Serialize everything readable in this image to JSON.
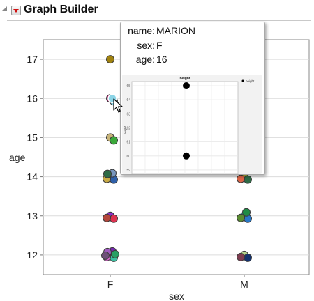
{
  "panel": {
    "title": "Graph Builder"
  },
  "chart_data": {
    "type": "scatter",
    "xlabel": "sex",
    "ylabel": "age",
    "categories": [
      "F",
      "M"
    ],
    "yticks": [
      12,
      13,
      14,
      15,
      16,
      17
    ],
    "ylim": [
      11.5,
      17.5
    ],
    "grid": true,
    "points": [
      {
        "x": "F",
        "y": 17,
        "color": "#a0820f"
      },
      {
        "x": "F",
        "y": 16,
        "color": "#a01060"
      },
      {
        "x": "F",
        "y": 16,
        "color": "#8cd4e6"
      },
      {
        "x": "F",
        "y": 15,
        "color": "#c8b478"
      },
      {
        "x": "F",
        "y": 15,
        "color": "#3aa83a"
      },
      {
        "x": "F",
        "y": 14,
        "color": "#d2691e"
      },
      {
        "x": "F",
        "y": 14,
        "color": "#2e5fa8"
      },
      {
        "x": "F",
        "y": 14,
        "color": "#c8aa46"
      },
      {
        "x": "F",
        "y": 14,
        "color": "#7896be"
      },
      {
        "x": "F",
        "y": 14,
        "color": "#2e6b46"
      },
      {
        "x": "F",
        "y": 13,
        "color": "#8b2fc8"
      },
      {
        "x": "F",
        "y": 13,
        "color": "#dc3250"
      },
      {
        "x": "F",
        "y": 13,
        "color": "#b4463c"
      },
      {
        "x": "F",
        "y": 12,
        "color": "#8cc878"
      },
      {
        "x": "F",
        "y": 12,
        "color": "#3cbea0"
      },
      {
        "x": "F",
        "y": 12,
        "color": "#d264c8"
      },
      {
        "x": "F",
        "y": 12,
        "color": "#7828b4"
      },
      {
        "x": "F",
        "y": 12,
        "color": "#a05abe"
      },
      {
        "x": "F",
        "y": 12,
        "color": "#28a064"
      },
      {
        "x": "F",
        "y": 12,
        "color": "#6e5078"
      },
      {
        "x": "M",
        "y": 14,
        "color": "#b4b43c"
      },
      {
        "x": "M",
        "y": 14,
        "color": "#2e6b46"
      },
      {
        "x": "M",
        "y": 14,
        "color": "#dc6446"
      },
      {
        "x": "M",
        "y": 13,
        "color": "#3cbeb4"
      },
      {
        "x": "M",
        "y": 13,
        "color": "#2878c8"
      },
      {
        "x": "M",
        "y": 13,
        "color": "#5a8c32"
      },
      {
        "x": "M",
        "y": 13,
        "color": "#1e8c46"
      },
      {
        "x": "M",
        "y": 12,
        "color": "#b4d28c"
      },
      {
        "x": "M",
        "y": 12,
        "color": "#14326e"
      },
      {
        "x": "M",
        "y": 12,
        "color": "#7d3c50"
      }
    ],
    "point_outline": "#3a3a3a",
    "highlight": {
      "x": "F",
      "y": 16,
      "color": "#8cd4e6"
    },
    "grid_color": "#dcdcdc",
    "frame_color": "#888888"
  },
  "tooltip": {
    "rows": [
      {
        "key": "name:",
        "value": "MARION"
      },
      {
        "key": "sex:",
        "value": "F"
      },
      {
        "key": "age:",
        "value": "16"
      }
    ],
    "thumbnail": {
      "type": "scatter",
      "title": "height",
      "ylabel": "height",
      "legend": "height",
      "yticks": [
        65,
        64,
        63,
        62,
        61,
        60,
        59
      ],
      "ylim": [
        58.7,
        65.3
      ],
      "points": [
        65,
        60
      ],
      "point_color": "#000000"
    }
  }
}
